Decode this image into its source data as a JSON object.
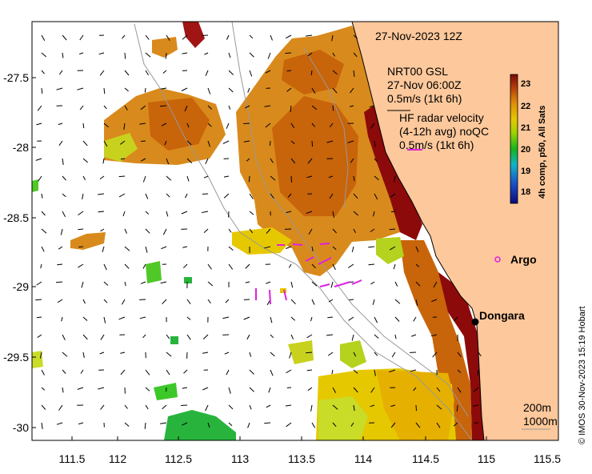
{
  "map": {
    "datetime": "27-Nov-2023 12Z",
    "gsl_title": "NRT00 GSL",
    "gsl_time": "27-Nov 06:00Z",
    "gsl_scale": "0.5m/s (1kt 6h)",
    "hf_title": "HF radar velocity",
    "hf_sub": "(4-12h avg) noQC",
    "hf_scale": "0.5m/s (1kt 6h)",
    "colorbar_label": "4h comp, p50, All Sats",
    "colorbar_ticks": [
      "23",
      "22",
      "21",
      "20",
      "19",
      "18"
    ],
    "x_ticks": [
      "111.5",
      "112",
      "112.5",
      "113",
      "113.5",
      "114",
      "114.5",
      "115",
      "115.5"
    ],
    "y_ticks": [
      "-27.5",
      "-28",
      "-28.5",
      "-29",
      "-29.5",
      "-30"
    ],
    "places": [
      {
        "name": "Argo"
      },
      {
        "name": "Dongara"
      }
    ],
    "contours": [
      "200m",
      "1000m"
    ],
    "credit": "© IMOS 30-Nov-2023 15:19 Hobart",
    "colors": {
      "land": "#fdc89b",
      "argo": "#e020e0",
      "hf_vectors": "#e020e0",
      "warm": "#c86400",
      "hot": "#8c0a0a",
      "cool": "#9ad200"
    }
  }
}
